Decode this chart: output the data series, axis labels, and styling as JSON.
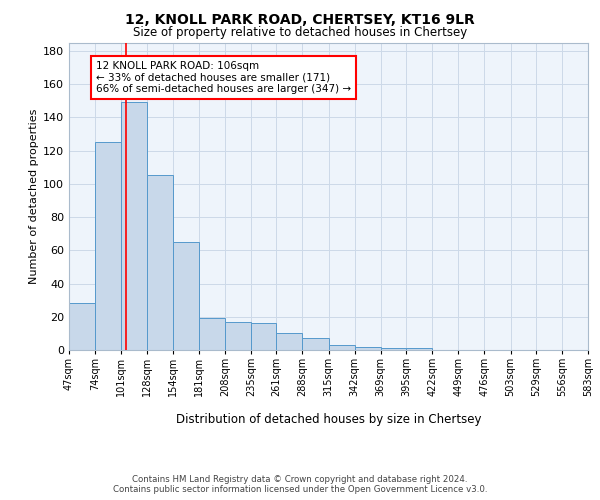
{
  "title": "12, KNOLL PARK ROAD, CHERTSEY, KT16 9LR",
  "subtitle": "Size of property relative to detached houses in Chertsey",
  "xlabel": "Distribution of detached houses by size in Chertsey",
  "ylabel": "Number of detached properties",
  "bin_edges": [
    47,
    74,
    101,
    128,
    154,
    181,
    208,
    235,
    261,
    288,
    315,
    342,
    369,
    395,
    422,
    449,
    476,
    503,
    529,
    556,
    583
  ],
  "bar_heights": [
    28,
    125,
    149,
    105,
    65,
    19,
    17,
    16,
    10,
    7,
    3,
    2,
    1,
    1,
    0,
    0,
    0,
    0,
    0,
    0
  ],
  "bar_color": "#c8d8ea",
  "bar_edgecolor": "#5599cc",
  "grid_color": "#ccd9e8",
  "bg_color": "#eef4fb",
  "red_line_x": 106,
  "annotation_lines": [
    "12 KNOLL PARK ROAD: 106sqm",
    "← 33% of detached houses are smaller (171)",
    "66% of semi-detached houses are larger (347) →"
  ],
  "tick_labels": [
    "47sqm",
    "74sqm",
    "101sqm",
    "128sqm",
    "154sqm",
    "181sqm",
    "208sqm",
    "235sqm",
    "261sqm",
    "288sqm",
    "315sqm",
    "342sqm",
    "369sqm",
    "395sqm",
    "422sqm",
    "449sqm",
    "476sqm",
    "503sqm",
    "529sqm",
    "556sqm",
    "583sqm"
  ],
  "ylim": [
    0,
    185
  ],
  "yticks": [
    0,
    20,
    40,
    60,
    80,
    100,
    120,
    140,
    160,
    180
  ],
  "footer_line1": "Contains HM Land Registry data © Crown copyright and database right 2024.",
  "footer_line2": "Contains public sector information licensed under the Open Government Licence v3.0."
}
